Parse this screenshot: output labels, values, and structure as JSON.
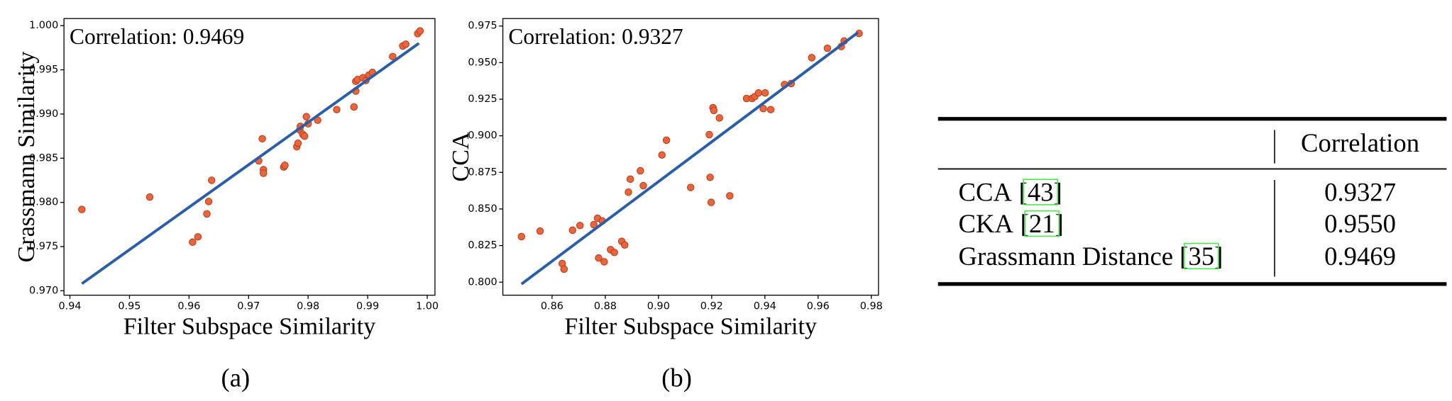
{
  "chart_data": [
    {
      "type": "scatter",
      "caption": "(a)",
      "annotation": "Correlation: 0.9469",
      "xlabel": "Filter Subspace Similarity",
      "ylabel": "Grassmann Similarity",
      "xlim": [
        0.939,
        1.0013
      ],
      "ylim": [
        0.9695,
        1.0008
      ],
      "xticks": [
        0.94,
        0.95,
        0.96,
        0.97,
        0.98,
        0.99,
        {
          "value": 1,
          "label": "1.00"
        }
      ],
      "yticks": [
        {
          "value": 0.97,
          "label": "0.970"
        },
        0.975,
        {
          "value": 0.98,
          "label": "0.980"
        },
        0.985,
        {
          "value": 0.99,
          "label": "0.990"
        },
        0.995,
        {
          "value": 1,
          "label": "1.000"
        }
      ],
      "series": [
        {
          "marker": "circle",
          "color": "#e8663d",
          "x": [
            0.942,
            0.9534,
            0.9606,
            0.9615,
            0.963,
            0.9633,
            0.9638,
            0.9717,
            0.9723,
            0.9725,
            0.9725,
            0.9759,
            0.9761,
            0.9781,
            0.9783,
            0.9786,
            0.9787,
            0.9791,
            0.9794,
            0.9797,
            0.98,
            0.9816,
            0.9848,
            0.9877,
            0.988,
            0.988,
            0.9883,
            0.9892,
            0.9897,
            0.9902,
            0.9908,
            0.9942,
            0.9959,
            0.9964,
            0.9984,
            0.9988
          ],
          "values": [
            0.9792,
            0.9806,
            0.9755,
            0.9761,
            0.9787,
            0.9801,
            0.9825,
            0.9847,
            0.9872,
            0.9837,
            0.9833,
            0.984,
            0.9842,
            0.9863,
            0.9867,
            0.9882,
            0.9886,
            0.9877,
            0.9875,
            0.9897,
            0.9889,
            0.9893,
            0.9905,
            0.9908,
            0.9926,
            0.9937,
            0.9939,
            0.9941,
            0.9938,
            0.9944,
            0.9947,
            0.9965,
            0.9977,
            0.9979,
            0.9991,
            0.9994
          ]
        },
        {
          "marker": "line",
          "color": "#2a5ea8",
          "x": [
            0.942,
            0.9986
          ],
          "values": [
            0.9708,
            0.998
          ]
        }
      ]
    },
    {
      "type": "scatter",
      "caption": "(b)",
      "annotation": "Correlation: 0.9327",
      "xlabel": "Filter Subspace Similarity",
      "ylabel": "CCA",
      "xlim": [
        0.8415,
        0.9827
      ],
      "ylim": [
        0.7911,
        0.9801
      ],
      "xticks": [
        0.86,
        0.88,
        {
          "value": 0.9,
          "label": "0.90"
        },
        0.92,
        0.94,
        0.96,
        0.98
      ],
      "yticks": [
        {
          "value": 0.8,
          "label": "0.800"
        },
        0.825,
        {
          "value": 0.85,
          "label": "0.850"
        },
        0.875,
        {
          "value": 0.9,
          "label": "0.900"
        },
        0.925,
        {
          "value": 0.95,
          "label": "0.950"
        },
        0.975
      ],
      "series": [
        {
          "marker": "circle",
          "color": "#e8663d",
          "x": [
            0.8485,
            0.8555,
            0.8638,
            0.8645,
            0.8677,
            0.8705,
            0.8757,
            0.8771,
            0.8775,
            0.8789,
            0.8796,
            0.882,
            0.8834,
            0.8862,
            0.8873,
            0.8887,
            0.8894,
            0.8932,
            0.8943,
            0.9013,
            0.903,
            0.9121,
            0.9191,
            0.9194,
            0.9198,
            0.9205,
            0.9208,
            0.9229,
            0.9268,
            0.9331,
            0.9352,
            0.9362,
            0.9376,
            0.9401,
            0.9394,
            0.9422,
            0.9474,
            0.9499,
            0.9576,
            0.9635,
            0.9687,
            0.9698,
            0.9754
          ],
          "values": [
            0.8311,
            0.8349,
            0.8127,
            0.8089,
            0.8355,
            0.8387,
            0.8393,
            0.8437,
            0.8165,
            0.8418,
            0.8139,
            0.8222,
            0.8203,
            0.8279,
            0.8254,
            0.8615,
            0.8704,
            0.8761,
            0.8659,
            0.8869,
            0.897,
            0.8647,
            0.9008,
            0.8716,
            0.8545,
            0.9192,
            0.9173,
            0.9122,
            0.859,
            0.9255,
            0.9255,
            0.9268,
            0.9293,
            0.9293,
            0.9186,
            0.9179,
            0.935,
            0.9357,
            0.9534,
            0.9598,
            0.961,
            0.9648,
            0.9699
          ]
        },
        {
          "marker": "line",
          "color": "#2a5ea8",
          "x": [
            0.8485,
            0.975
          ],
          "values": [
            0.7987,
            0.9706
          ]
        }
      ]
    }
  ],
  "table": {
    "header": "Correlation",
    "rows": [
      {
        "method": "CCA",
        "citation": "[43]",
        "value": "0.9327"
      },
      {
        "method": "CKA",
        "citation": "[21]",
        "value": "0.9550"
      },
      {
        "method": "Grassmann Distance",
        "citation": "[35]",
        "value": "0.9469"
      }
    ]
  }
}
